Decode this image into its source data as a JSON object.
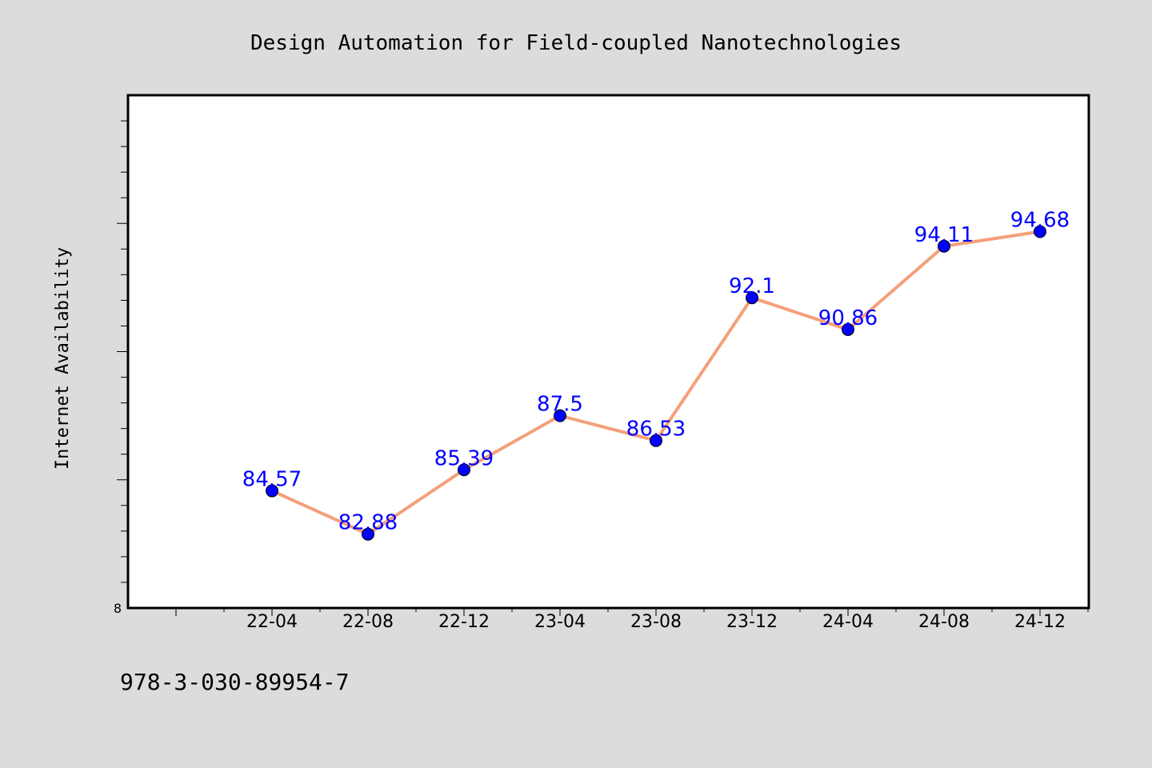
{
  "colors": {
    "background": "#dcdcdc",
    "plot_background": "#ffffff",
    "line": "#f4a07a",
    "marker": "#0000ff",
    "data_label": "#0000ff",
    "text": "#000000"
  },
  "footer_text": "978-3-030-89954-7",
  "chart_data": {
    "type": "line",
    "title": "Design Automation for Field-coupled Nanotechnologies",
    "xlabel": "",
    "ylabel": "Internet Availability",
    "x": [
      "22-04",
      "22-08",
      "22-12",
      "23-04",
      "23-08",
      "23-12",
      "24-04",
      "24-08",
      "24-12"
    ],
    "series": [
      {
        "values": [
          84.57,
          82.88,
          85.39,
          87.5,
          86.53,
          92.1,
          90.86,
          94.11,
          94.68
        ]
      }
    ],
    "data_labels": [
      "84.57",
      "82.88",
      "85.39",
      "87.5",
      "86.53",
      "92.1",
      "90.86",
      "94.11",
      "94.68"
    ],
    "ylim": [
      80,
      100
    ],
    "y_tick_labels": [
      "8"
    ],
    "grid": false,
    "legend": "none"
  }
}
